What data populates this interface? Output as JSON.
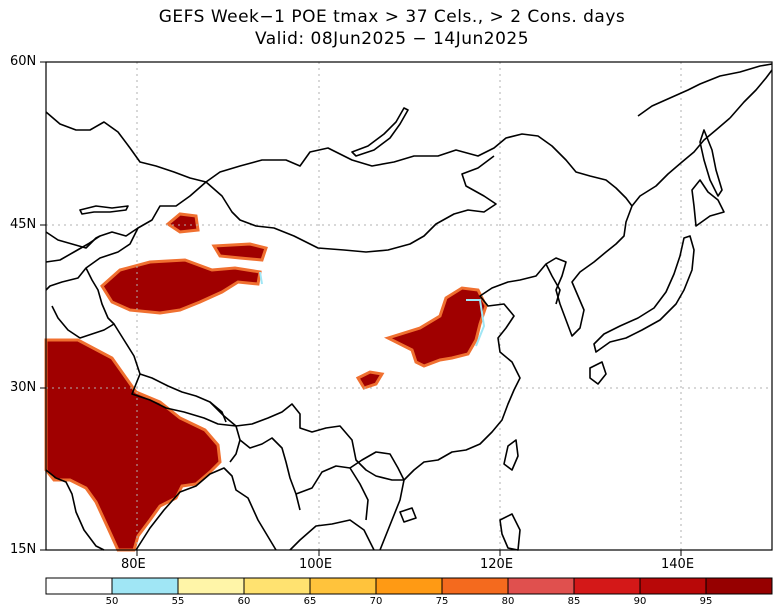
{
  "title": {
    "line1": "GEFS Week−1 POE tmax > 37 Cels., > 2 Cons. days",
    "line2": "Valid: 08Jun2025 − 14Jun2025"
  },
  "axes": {
    "lat_labels": [
      "60N",
      "45N",
      "30N",
      "15N"
    ],
    "lon_labels": [
      "80E",
      "100E",
      "120E",
      "140E"
    ]
  },
  "colorbar": {
    "labels": [
      "50",
      "55",
      "60",
      "65",
      "70",
      "75",
      "80",
      "85",
      "90",
      "95"
    ],
    "colors": [
      "#ffffff",
      "#a0e6f5",
      "#fff5a8",
      "#ffe270",
      "#ffc33c",
      "#ff9a14",
      "#f46a1e",
      "#e0504e",
      "#d41818",
      "#b80808",
      "#960000"
    ]
  },
  "map": {
    "region": "East Asia, 15N–60N, 70E–150E",
    "main_color": "#a00000",
    "edge_color": "#f07030"
  }
}
